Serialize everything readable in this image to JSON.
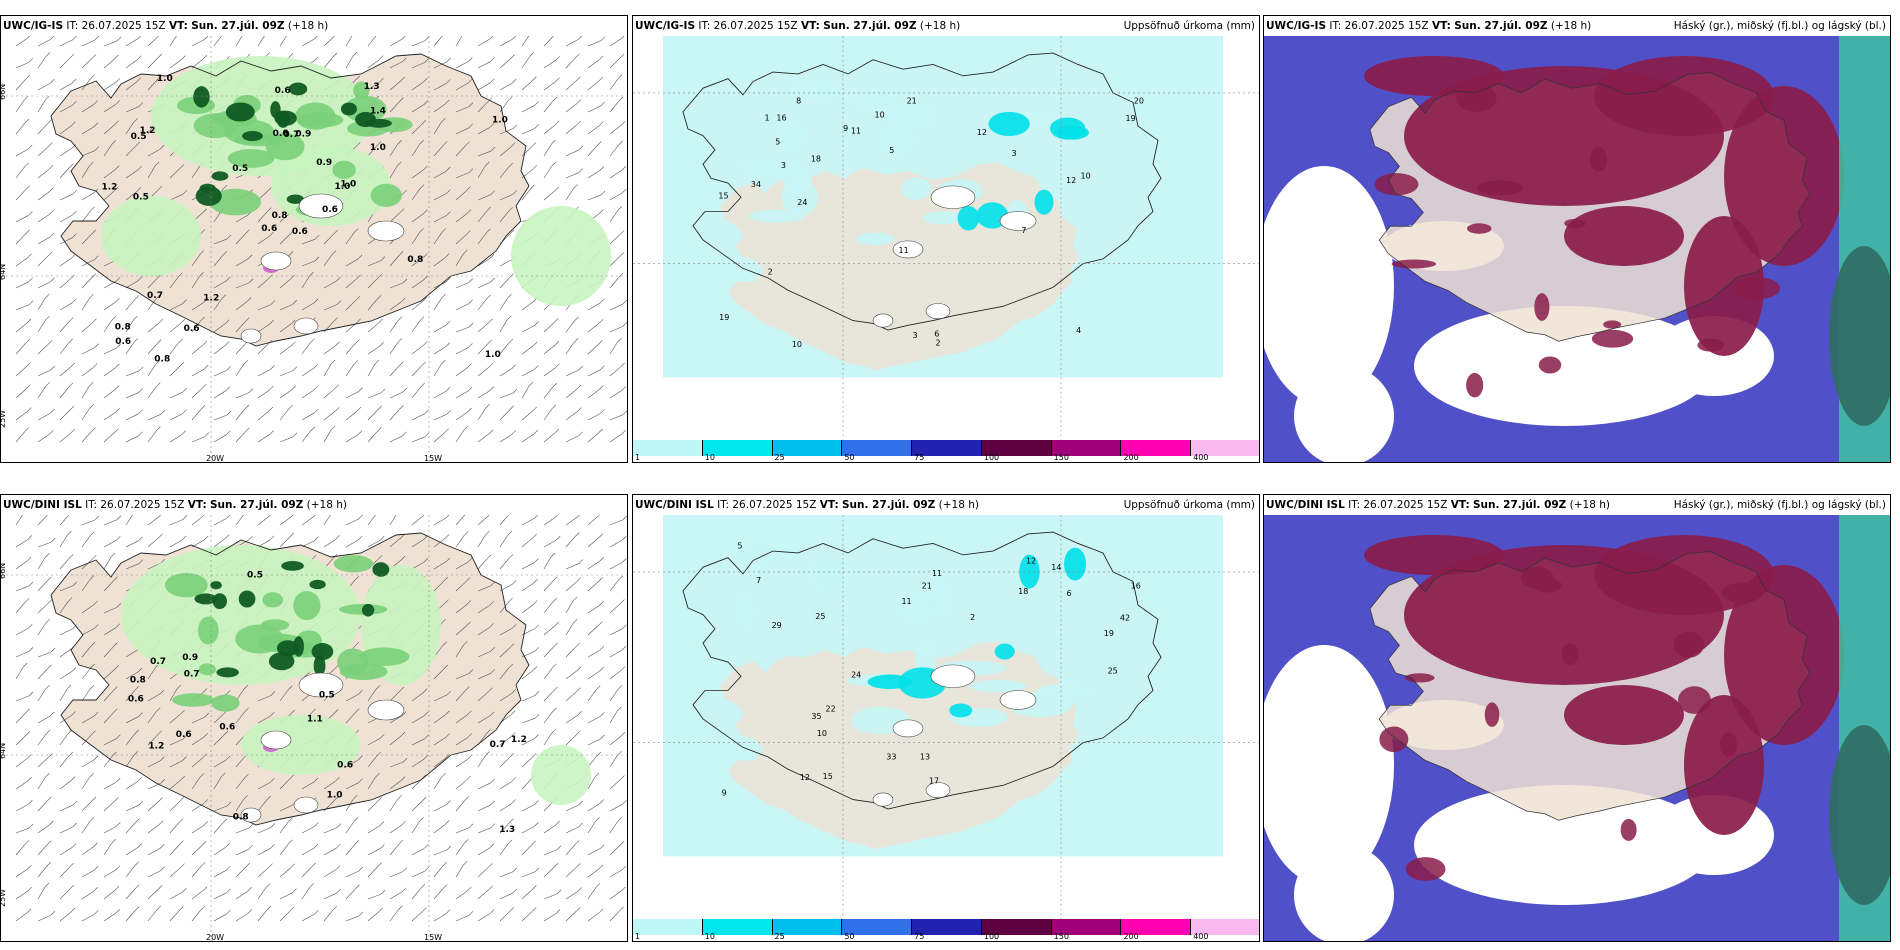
{
  "panels": [
    {
      "id": "tl",
      "model": "UWC/IG-IS",
      "it_label": "IT:",
      "it": "26.07.2025 15Z",
      "vt_label": "VT:",
      "vt": "Sun. 27.júl. 09Z",
      "lead": "(+18 h)",
      "right": "",
      "kind": "precip"
    },
    {
      "id": "tm",
      "model": "UWC/IG-IS",
      "it_label": "IT:",
      "it": "26.07.2025 15Z",
      "vt_label": "VT:",
      "vt": "Sun. 27.júl. 09Z",
      "lead": "(+18 h)",
      "right": "Uppsöfnuð úrkoma (mm)",
      "kind": "accum"
    },
    {
      "id": "tr",
      "model": "UWC/IG-IS",
      "it_label": "IT:",
      "it": "26.07.2025 15Z",
      "vt_label": "VT:",
      "vt": "Sun. 27.júl. 09Z",
      "lead": "(+18 h)",
      "right": "Háský (gr.), miðský (fj.bl.) og lágský (bl.)",
      "kind": "cloud"
    },
    {
      "id": "bl",
      "model": "UWC/DINI ISL",
      "it_label": "IT:",
      "it": "26.07.2025 15Z",
      "vt_label": "VT:",
      "vt": "Sun. 27.júl. 09Z",
      "lead": "(+18 h)",
      "right": "",
      "kind": "precip"
    },
    {
      "id": "bm",
      "model": "UWC/DINI ISL",
      "it_label": "IT:",
      "it": "26.07.2025 15Z",
      "vt_label": "VT:",
      "vt": "Sun. 27.júl. 09Z",
      "lead": "(+18 h)",
      "right": "Uppsöfnuð úrkoma (mm)",
      "kind": "accum"
    },
    {
      "id": "br",
      "model": "UWC/DINI ISL",
      "it_label": "IT:",
      "it": "26.07.2025 15Z",
      "vt_label": "VT:",
      "vt": "Sun. 27.júl. 09Z",
      "lead": "(+18 h)",
      "right": "Háský (gr.), miðský (fj.bl.) og lágský (bl.)",
      "kind": "cloud"
    }
  ],
  "axis_labels": {
    "lat66": "66N",
    "lat64": "64N",
    "lon25": "25W",
    "lon20": "20W",
    "lon15": "15W"
  },
  "colorbar": {
    "labels": [
      "1",
      "10",
      "25",
      "50",
      "75",
      "100",
      "150",
      "200",
      "400"
    ],
    "colors": [
      "#bff7f7",
      "#00e5ee",
      "#00c0ee",
      "#3070e8",
      "#2222b0",
      "#600040",
      "#a0007a",
      "#ff00b0",
      "#f8b8f0"
    ]
  },
  "colors": {
    "land": "#efe2d4",
    "sea": "#ffffff",
    "precip_light": "#c8f4c0",
    "precip_mid": "#7ad07a",
    "precip_dark": "#0f5a22",
    "accum_light": "#c8f5f6",
    "accum_mid": "#00e0ea",
    "cloud_high": "#8a1c4a",
    "cloud_mid": "#5050c8",
    "cloud_low": "#ffffff",
    "cloud_green": "#3fc9a0"
  },
  "labels": {
    "tl": [
      "0.6",
      "0.5",
      "0.8",
      "0.8",
      "1.0",
      "1.2",
      "1.3",
      "0.9",
      "1.4",
      "0.6",
      "1.0",
      "1.0",
      "0.5",
      "1.0",
      "0.6",
      "1.0",
      "0.8",
      "0.6",
      "0.9",
      "0.7",
      "0.5",
      "0.6",
      "0.6",
      "0.7",
      "1.0",
      "0.8",
      "1.2",
      "0.6",
      "1.2"
    ],
    "tm": [
      "2",
      "3",
      "19",
      "6",
      "7",
      "18",
      "12",
      "10",
      "11",
      "16",
      "24",
      "19",
      "21",
      "34",
      "5",
      "10",
      "8",
      "11",
      "3",
      "4",
      "12",
      "9",
      "10",
      "20",
      "15",
      "1",
      "2",
      "3",
      "5"
    ],
    "bl": [
      "1.0",
      "0.7",
      "1.2",
      "0.5",
      "1.3",
      "0.8",
      "1.1",
      "0.5",
      "0.7",
      "0.6",
      "0.9",
      "1.2",
      "0.6",
      "0.8",
      "0.6",
      "0.6",
      "0.7"
    ],
    "bm": [
      "2",
      "11",
      "12",
      "6",
      "7",
      "5",
      "13",
      "25",
      "18",
      "19",
      "15",
      "9",
      "11",
      "21",
      "24",
      "33",
      "22",
      "42",
      "29",
      "25",
      "35",
      "16",
      "14",
      "17",
      "10",
      "12"
    ]
  }
}
